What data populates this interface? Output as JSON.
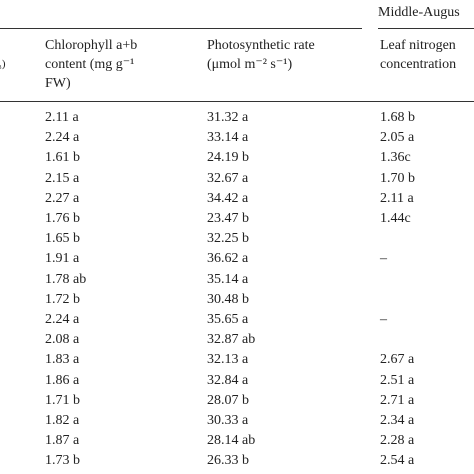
{
  "header": {
    "group_label": "Middle-Augus",
    "left_fragment": "₃)",
    "columns": [
      [
        "Chlorophyll a+b",
        "content (mg g⁻¹",
        "FW)"
      ],
      [
        "Photosynthetic rate",
        "(μmol m⁻² s⁻¹)"
      ],
      [
        "Leaf nitrogen",
        "concentration"
      ]
    ]
  },
  "table": {
    "rows": [
      [
        "2.11 a",
        "31.32 a",
        "1.68 b"
      ],
      [
        "2.24 a",
        "33.14 a",
        "2.05 a"
      ],
      [
        "1.61 b",
        "24.19 b",
        "1.36c"
      ],
      [
        "2.15 a",
        "32.67 a",
        "1.70 b"
      ],
      [
        "2.27 a",
        "34.42 a",
        "2.11 a"
      ],
      [
        "1.76 b",
        "23.47 b",
        "1.44c"
      ],
      [
        "1.65 b",
        "32.25 b",
        null
      ],
      [
        "1.91 a",
        "36.62 a",
        "–"
      ],
      [
        "1.78 ab",
        "35.14 a",
        null
      ],
      [
        "1.72 b",
        "30.48 b",
        null
      ],
      [
        "2.24 a",
        "35.65 a",
        "–"
      ],
      [
        "2.08 a",
        "32.87 ab",
        null
      ],
      [
        "1.83 a",
        "32.13 a",
        "2.67 a"
      ],
      [
        "1.86 a",
        "32.84 a",
        "2.51 a"
      ],
      [
        "1.71 b",
        "28.07 b",
        "2.71 a"
      ],
      [
        "1.82 a",
        "30.33 a",
        "2.34 a"
      ],
      [
        "1.87 a",
        "28.14 ab",
        "2.28 a"
      ],
      [
        "1.73 b",
        "26.33 b",
        "2.54 a"
      ]
    ]
  }
}
